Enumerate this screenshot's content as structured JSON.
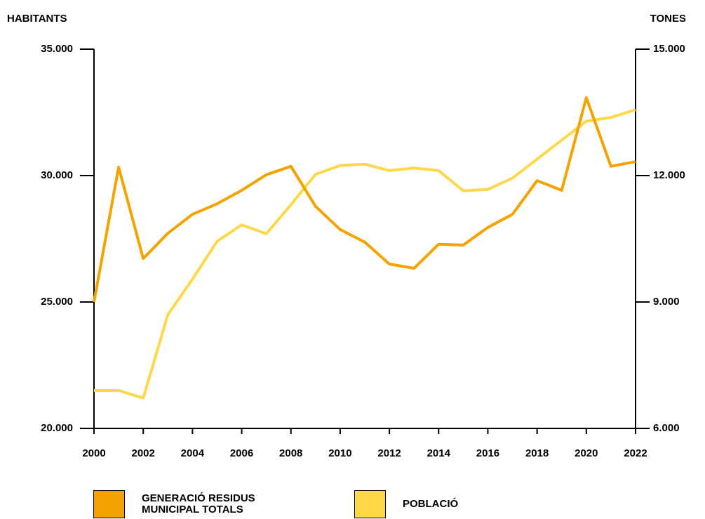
{
  "chart_data": {
    "type": "line",
    "y_label": "HABITANTS",
    "y2_label": "TONES",
    "x": [
      2000,
      2001,
      2002,
      2003,
      2004,
      2005,
      2006,
      2007,
      2008,
      2009,
      2010,
      2011,
      2012,
      2013,
      2014,
      2015,
      2016,
      2017,
      2018,
      2019,
      2020,
      2021,
      2022
    ],
    "xlim": [
      2000,
      2022
    ],
    "xticks": [
      2000,
      2002,
      2004,
      2006,
      2008,
      2010,
      2012,
      2014,
      2016,
      2018,
      2020,
      2022
    ],
    "ylim": [
      20000,
      35000
    ],
    "yticks": [
      {
        "value": 20000,
        "label": "20.000"
      },
      {
        "value": 25000,
        "label": "25.000"
      },
      {
        "value": 30000,
        "label": "30.000"
      },
      {
        "value": 35000,
        "label": "35.000"
      }
    ],
    "y2lim": [
      6000,
      15000
    ],
    "y2ticks": [
      {
        "value": 6000,
        "label": "6.000"
      },
      {
        "value": 9000,
        "label": "9.000"
      },
      {
        "value": 12000,
        "label": "12.000"
      },
      {
        "value": 15000,
        "label": "15.000"
      }
    ],
    "series": [
      {
        "name": "GENERACIÓ RESIDUS MUNICIPAL TOTALS",
        "color": "#f4a300",
        "axis": "y2",
        "values": [
          9000,
          12200,
          10030,
          10630,
          11080,
          11330,
          11650,
          12020,
          12220,
          11270,
          10720,
          10420,
          9900,
          9800,
          10370,
          10350,
          10770,
          11080,
          11880,
          11650,
          13850,
          12220,
          12330
        ]
      },
      {
        "name": "POBLACIÓ",
        "color": "#ffd84a",
        "axis": "y",
        "values": [
          21500,
          21500,
          21200,
          24500,
          25900,
          27400,
          28050,
          27700,
          28850,
          30050,
          30400,
          30450,
          30200,
          30300,
          30200,
          29400,
          29450,
          29900,
          30650,
          31400,
          32150,
          32300,
          32600
        ]
      }
    ]
  }
}
